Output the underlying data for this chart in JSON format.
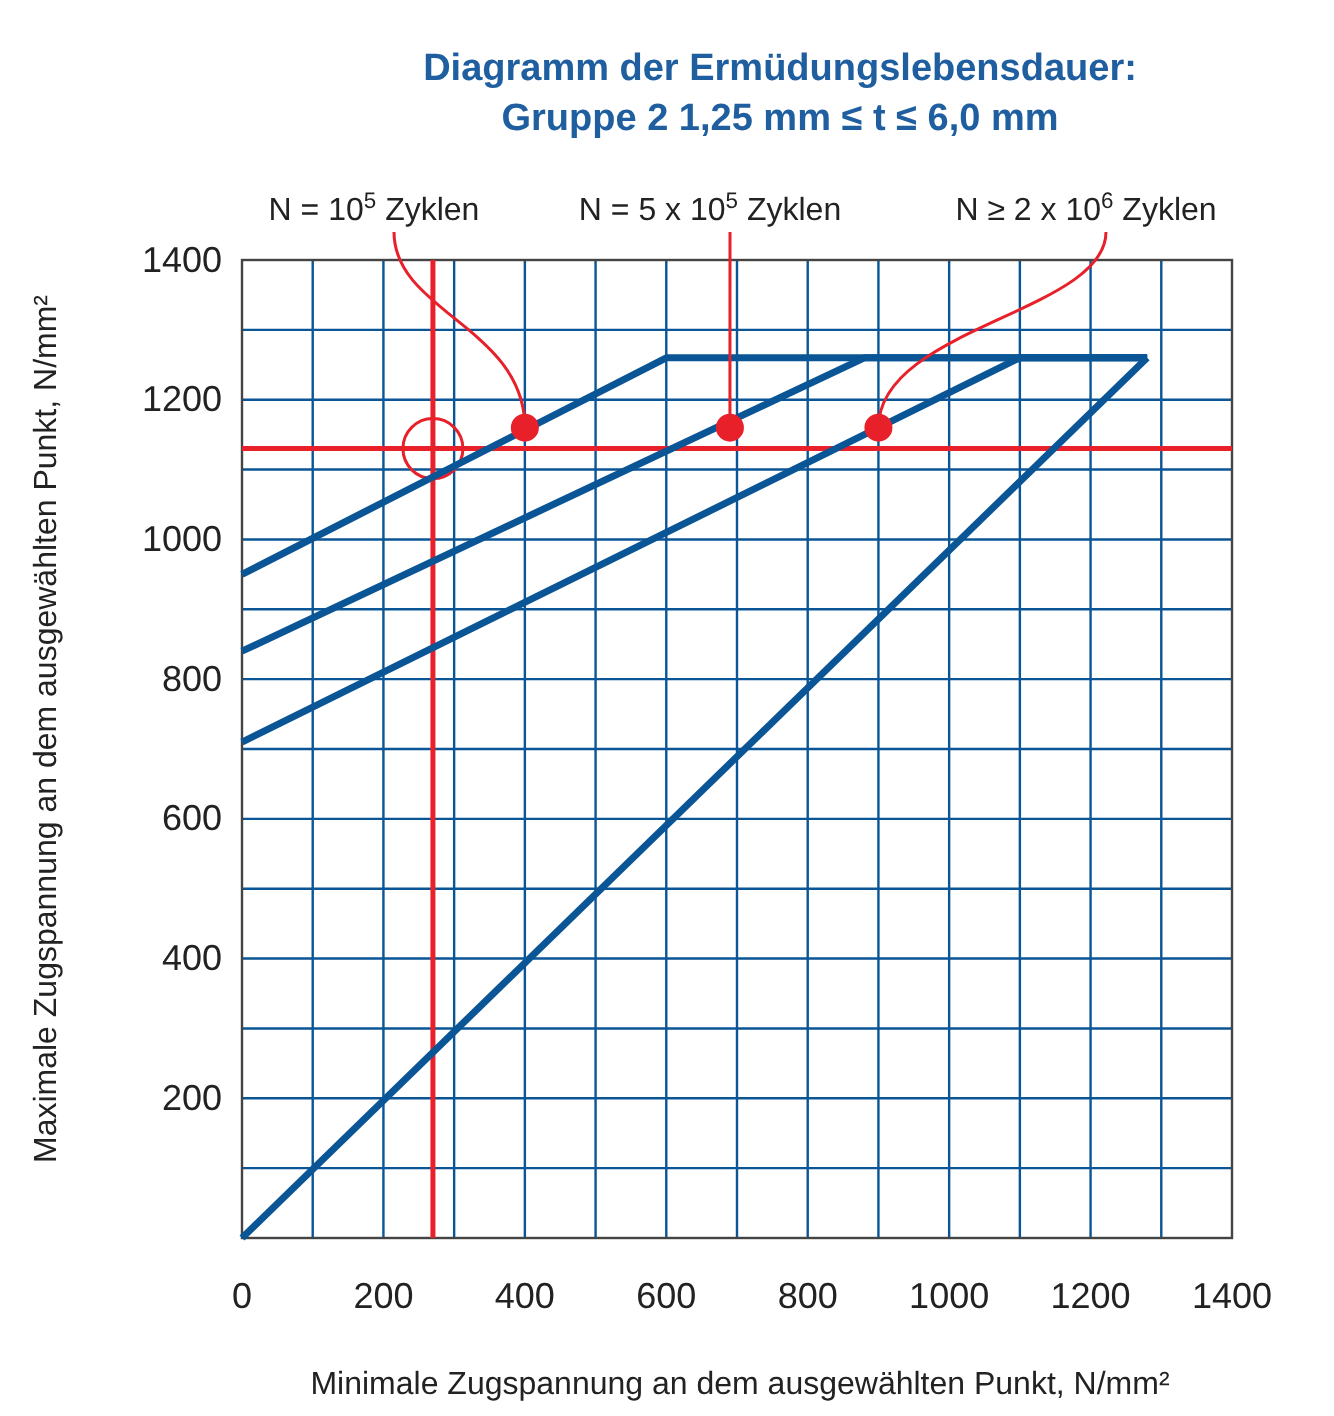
{
  "chart_data": {
    "type": "line",
    "title": "Diagramm der Ermüdungslebensdauer:",
    "subtitle": "Gruppe 2  1,25 mm ≤ t ≤ 6,0 mm",
    "xlabel": "Minimale Zugspannung an dem ausgewählten Punkt, N/mm²",
    "ylabel": "Maximale Zugspannung an dem ausgewählten Punkt, N/mm²",
    "xlim": [
      0,
      1400
    ],
    "ylim": [
      0,
      1400
    ],
    "xticks": [
      0,
      {
        "value": 100,
        "label": null
      },
      200,
      {
        "value": 300,
        "label": null
      },
      400,
      {
        "value": 500,
        "label": null
      },
      600,
      {
        "value": 700,
        "label": null
      },
      800,
      {
        "value": 900,
        "label": null
      },
      1000,
      {
        "value": 1100,
        "label": null
      },
      1200,
      {
        "value": 1300,
        "label": null
      },
      1400
    ],
    "yticks": [
      {
        "value": 0,
        "label": null
      },
      {
        "value": 100,
        "label": null
      },
      200,
      {
        "value": 300,
        "label": null
      },
      400,
      {
        "value": 500,
        "label": null
      },
      600,
      {
        "value": 700,
        "label": null
      },
      800,
      {
        "value": 900,
        "label": null
      },
      1000,
      {
        "value": 1100,
        "label": null
      },
      1200,
      {
        "value": 1300,
        "label": null
      },
      1400
    ],
    "grid": true,
    "line_style": "solid",
    "series": [
      {
        "color": "#0a5596",
        "x": [
          0,
          600,
          1280
        ],
        "values": [
          950,
          1260,
          1260
        ]
      },
      {
        "color": "#0a5596",
        "x": [
          0,
          880,
          1280
        ],
        "values": [
          840,
          1260,
          1260
        ]
      },
      {
        "color": "#0a5596",
        "x": [
          0,
          1100,
          1280
        ],
        "values": [
          710,
          1260,
          1260
        ]
      },
      {
        "color": "#0a5596",
        "x": [
          0,
          1280
        ],
        "values": [
          0,
          1260
        ]
      },
      {
        "type": "scatter",
        "color": "#e8202a",
        "marker": "circle",
        "x": [
          400,
          690,
          900
        ],
        "values": [
          1160,
          1160,
          1160
        ]
      }
    ],
    "ref_lines": [
      {
        "axis": "x",
        "value": 270,
        "color": "#e8202a"
      },
      {
        "axis": "y",
        "value": 1130,
        "color": "#e8202a"
      }
    ],
    "annotations": [
      {
        "text": "N = 10$^{5}$ Zyklen",
        "x": 400,
        "y": 1160
      },
      {
        "text": "N = 5 x 10$^{5}$ Zyklen",
        "x": 690,
        "y": 1160
      },
      {
        "text": "N ≥ 2 x 10$^{6}$ Zyklen",
        "x": 900,
        "y": 1160
      }
    ]
  }
}
